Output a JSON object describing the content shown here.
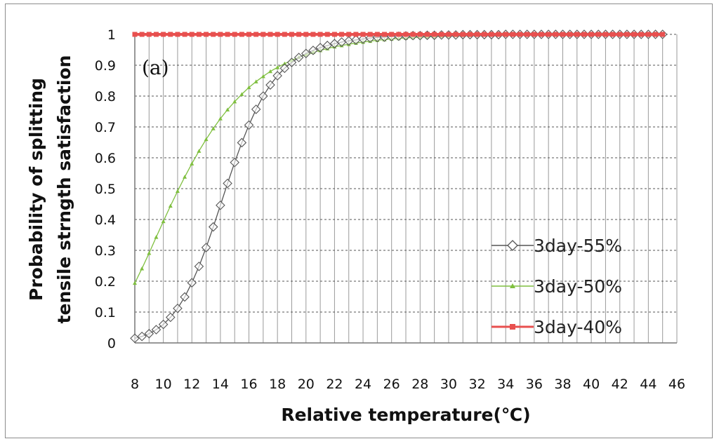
{
  "chart_data": {
    "type": "line",
    "panel_label": "(a)",
    "xlabel": "Relative temperature(℃)",
    "ylabel_lines": [
      "Probability of splitting",
      "tensile strngth satisfaction"
    ],
    "xlim": [
      8,
      46
    ],
    "ylim": [
      0,
      1
    ],
    "x_ticks": [
      8,
      10,
      12,
      14,
      16,
      18,
      20,
      22,
      24,
      26,
      28,
      30,
      32,
      34,
      36,
      38,
      40,
      42,
      44,
      46
    ],
    "y_ticks": [
      0,
      0.1,
      0.2,
      0.3,
      0.4,
      0.5,
      0.6,
      0.7,
      0.8,
      0.9,
      1
    ],
    "legend_position": "center-right",
    "grid": true,
    "x": [
      8,
      8.5,
      9,
      9.5,
      10,
      10.5,
      11,
      11.5,
      12,
      12.5,
      13,
      13.5,
      14,
      14.5,
      15,
      15.5,
      16,
      16.5,
      17,
      17.5,
      18,
      18.5,
      19,
      19.5,
      20,
      20.5,
      21,
      21.5,
      22,
      22.5,
      23,
      23.5,
      24,
      24.5,
      25,
      25.5,
      26,
      26.5,
      27,
      27.5,
      28,
      28.5,
      29,
      29.5,
      30,
      30.5,
      31,
      31.5,
      32,
      32.5,
      33,
      33.5,
      34,
      34.5,
      35,
      35.5,
      36,
      36.5,
      37,
      37.5,
      38,
      38.5,
      39,
      39.5,
      40,
      40.5,
      41,
      41.5,
      42,
      42.5,
      43,
      43.5,
      44,
      44.5,
      45
    ],
    "series": [
      {
        "name": "3day-55%",
        "color": "#555555",
        "marker": "diamond",
        "values": [
          0.015,
          0.021,
          0.03,
          0.043,
          0.06,
          0.083,
          0.112,
          0.149,
          0.195,
          0.248,
          0.309,
          0.376,
          0.446,
          0.517,
          0.585,
          0.649,
          0.706,
          0.757,
          0.8,
          0.836,
          0.866,
          0.89,
          0.909,
          0.925,
          0.938,
          0.948,
          0.957,
          0.964,
          0.97,
          0.975,
          0.979,
          0.982,
          0.985,
          0.988,
          0.99,
          0.991,
          0.993,
          0.994,
          0.995,
          0.996,
          0.996,
          0.997,
          0.997,
          0.998,
          0.998,
          0.998,
          0.999,
          0.999,
          0.999,
          0.999,
          0.999,
          0.999,
          1,
          1,
          1,
          1,
          1,
          1,
          1,
          1,
          1,
          1,
          1,
          1,
          1,
          1,
          1,
          1,
          1,
          1,
          1,
          1,
          1,
          1,
          1
        ]
      },
      {
        "name": "3day-50%",
        "color": "#7fbf3f",
        "marker": "triangle",
        "values": [
          0.194,
          0.241,
          0.291,
          0.343,
          0.394,
          0.444,
          0.492,
          0.538,
          0.581,
          0.622,
          0.66,
          0.695,
          0.727,
          0.756,
          0.782,
          0.806,
          0.828,
          0.847,
          0.864,
          0.88,
          0.893,
          0.905,
          0.916,
          0.926,
          0.934,
          0.942,
          0.948,
          0.954,
          0.96,
          0.964,
          0.968,
          0.972,
          0.975,
          0.978,
          0.981,
          0.983,
          0.985,
          0.987,
          0.988,
          0.99,
          0.991,
          0.992,
          0.993,
          0.994,
          0.995,
          0.996,
          0.997,
          0.997,
          0.998,
          0.998,
          0.998,
          0.999,
          0.999,
          0.999,
          1,
          1,
          1,
          1,
          1,
          1,
          1,
          1,
          1,
          1,
          1,
          1,
          1,
          1,
          1,
          1,
          1,
          1,
          1,
          1,
          1
        ]
      },
      {
        "name": "3day-40%",
        "color": "#e8504f",
        "marker": "square",
        "values": [
          1,
          1,
          1,
          1,
          1,
          1,
          1,
          1,
          1,
          1,
          1,
          1,
          1,
          1,
          1,
          1,
          1,
          1,
          1,
          1,
          1,
          1,
          1,
          1,
          1,
          1,
          1,
          1,
          1,
          1,
          1,
          1,
          1,
          1,
          1,
          1,
          1,
          1,
          1,
          1,
          1,
          1,
          1,
          1,
          1,
          1,
          1,
          1,
          1,
          1,
          1,
          1,
          1,
          1,
          1,
          1,
          1,
          1,
          1,
          1,
          1,
          1,
          1,
          1,
          1,
          1,
          1,
          1,
          1,
          1,
          1,
          1,
          1,
          1,
          1
        ]
      }
    ]
  }
}
